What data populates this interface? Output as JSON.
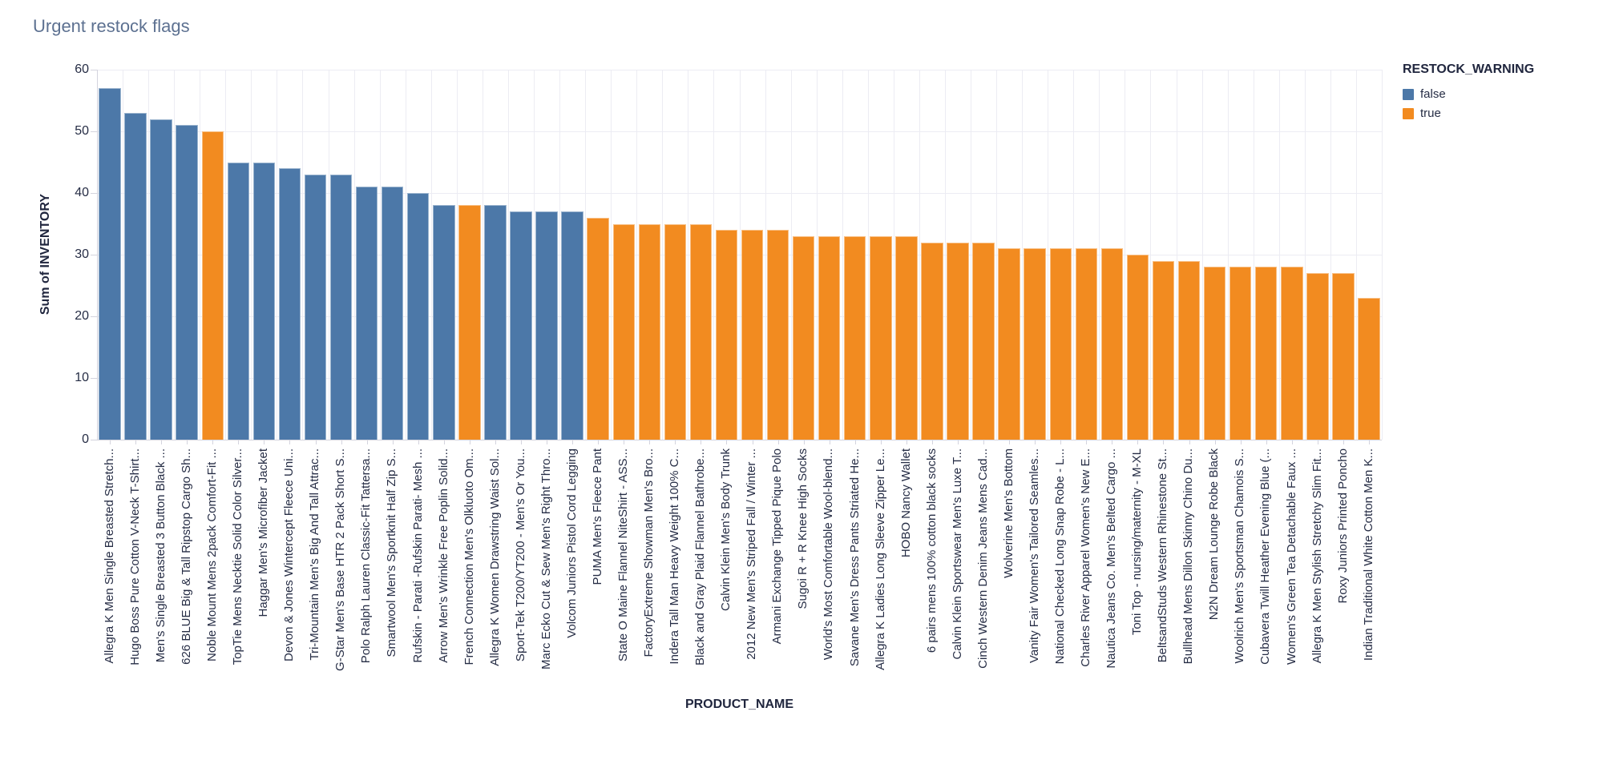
{
  "title": "Urgent restock flags",
  "legend": {
    "title": "RESTOCK_WARNING",
    "items": [
      {
        "label": "false",
        "color": "#4C78A8"
      },
      {
        "label": "true",
        "color": "#F28B20"
      }
    ]
  },
  "chart_data": {
    "type": "bar",
    "title": "Urgent restock flags",
    "xlabel": "PRODUCT_NAME",
    "ylabel": "Sum of INVENTORY",
    "ylim": [
      0,
      60
    ],
    "yticks": [
      0,
      10,
      20,
      30,
      40,
      50,
      60
    ],
    "grid": true,
    "legend_position": "top-right",
    "series_field": "RESTOCK_WARNING",
    "colors": {
      "false": "#4C78A8",
      "true": "#F28B20"
    },
    "points": [
      {
        "label": "Allegra K Men Single Breasted Stretch...",
        "value": 57,
        "restock_warning": false
      },
      {
        "label": "Hugo Boss Pure Cotton V-Neck T-Shirt...",
        "value": 53,
        "restock_warning": false
      },
      {
        "label": "Men's Single Breasted 3 Button Black ...",
        "value": 52,
        "restock_warning": false
      },
      {
        "label": "626 BLUE Big & Tall Ripstop Cargo Sh...",
        "value": 51,
        "restock_warning": false
      },
      {
        "label": "Noble Mount Mens 2pack Comfort-Fit ...",
        "value": 50,
        "restock_warning": true
      },
      {
        "label": "TopTie Mens Necktie Solid Color Silver...",
        "value": 45,
        "restock_warning": false
      },
      {
        "label": "Haggar Men's Microfiber Jacket",
        "value": 45,
        "restock_warning": false
      },
      {
        "label": "Devon & Jones Wintercept Fleece Uni...",
        "value": 44,
        "restock_warning": false
      },
      {
        "label": "Tri-Mountain Men's Big And Tall Attrac...",
        "value": 43,
        "restock_warning": false
      },
      {
        "label": "G-Star Men's Base HTR 2 Pack Short S...",
        "value": 43,
        "restock_warning": false
      },
      {
        "label": "Polo Ralph Lauren Classic-Fit Tattersa...",
        "value": 41,
        "restock_warning": false
      },
      {
        "label": "Smartwool Men's Sportknit Half Zip S...",
        "value": 41,
        "restock_warning": false
      },
      {
        "label": "Rufskin - Parati -Rufskin Parati- Mesh ...",
        "value": 40,
        "restock_warning": false
      },
      {
        "label": "Arrow Men's Wrinkle Free Poplin Solid...",
        "value": 38,
        "restock_warning": false
      },
      {
        "label": "French Connection Men's Olkluoto Om...",
        "value": 38,
        "restock_warning": true
      },
      {
        "label": "Allegra K Women Drawstring Waist Sol...",
        "value": 38,
        "restock_warning": false
      },
      {
        "label": "Sport-Tek T200/YT200 - Men's Or You...",
        "value": 37,
        "restock_warning": false
      },
      {
        "label": "Marc Ecko Cut & Sew Men's Right Thro...",
        "value": 37,
        "restock_warning": false
      },
      {
        "label": "Volcom Juniors Pistol Cord Legging",
        "value": 37,
        "restock_warning": false
      },
      {
        "label": "PUMA Men's Fleece Pant",
        "value": 36,
        "restock_warning": true
      },
      {
        "label": "State O Maine Flannel NiteShirt - ASS...",
        "value": 35,
        "restock_warning": true
      },
      {
        "label": "FactoryExtreme Showman Men's Bro...",
        "value": 35,
        "restock_warning": true
      },
      {
        "label": "Indera Tall Man Heavy Weight 100% C...",
        "value": 35,
        "restock_warning": true
      },
      {
        "label": "Black and Gray Plaid Flannel Bathrobe...",
        "value": 35,
        "restock_warning": true
      },
      {
        "label": "Calvin Klein Men's Body Trunk",
        "value": 34,
        "restock_warning": true
      },
      {
        "label": "2012 New Men's Striped Fall / Winter ...",
        "value": 34,
        "restock_warning": true
      },
      {
        "label": "Armani Exchange Tipped Pique Polo",
        "value": 34,
        "restock_warning": true
      },
      {
        "label": "Sugoi R + R Knee High Socks",
        "value": 33,
        "restock_warning": true
      },
      {
        "label": "World's Most Comfortable Wool-blend...",
        "value": 33,
        "restock_warning": true
      },
      {
        "label": "Savane Men's Dress Pants Striated He...",
        "value": 33,
        "restock_warning": true
      },
      {
        "label": "Allegra K Ladies Long Sleeve Zipper Le...",
        "value": 33,
        "restock_warning": true
      },
      {
        "label": "HOBO Nancy Wallet",
        "value": 33,
        "restock_warning": true
      },
      {
        "label": "6 pairs mens 100% cotton black socks",
        "value": 32,
        "restock_warning": true
      },
      {
        "label": "Calvin Klein Sportswear Men's Luxe T...",
        "value": 32,
        "restock_warning": true
      },
      {
        "label": "Cinch Western Denim Jeans Mens Cad...",
        "value": 32,
        "restock_warning": true
      },
      {
        "label": "Wolverine Men's Bottom",
        "value": 31,
        "restock_warning": true
      },
      {
        "label": "Vanity Fair Women's Tailored Seamles...",
        "value": 31,
        "restock_warning": true
      },
      {
        "label": "National Checked Long Snap Robe - L...",
        "value": 31,
        "restock_warning": true
      },
      {
        "label": "Charles River Apparel Women's New E...",
        "value": 31,
        "restock_warning": true
      },
      {
        "label": "Nautica Jeans Co. Men's Belted Cargo ...",
        "value": 31,
        "restock_warning": true
      },
      {
        "label": "Toni Top - nursing/maternity - M-XL",
        "value": 30,
        "restock_warning": true
      },
      {
        "label": "BeltsandStuds Western Rhinestone St...",
        "value": 29,
        "restock_warning": true
      },
      {
        "label": "Bullhead Mens Dillon Skinny Chino Du...",
        "value": 29,
        "restock_warning": true
      },
      {
        "label": "N2N Dream Lounge Robe Black",
        "value": 28,
        "restock_warning": true
      },
      {
        "label": "Woolrich Men's Sportsman Chamois S...",
        "value": 28,
        "restock_warning": true
      },
      {
        "label": "Cubavera Twill Heather Evening Blue (...",
        "value": 28,
        "restock_warning": true
      },
      {
        "label": "Women's Green Tea Detachable Faux ...",
        "value": 28,
        "restock_warning": true
      },
      {
        "label": "Allegra K Men Stylish Stretchy Slim Fit...",
        "value": 27,
        "restock_warning": true
      },
      {
        "label": "Roxy Juniors Printed Poncho",
        "value": 27,
        "restock_warning": true
      },
      {
        "label": "Indian Traditional White Cotton Men K...",
        "value": 23,
        "restock_warning": true
      }
    ]
  }
}
